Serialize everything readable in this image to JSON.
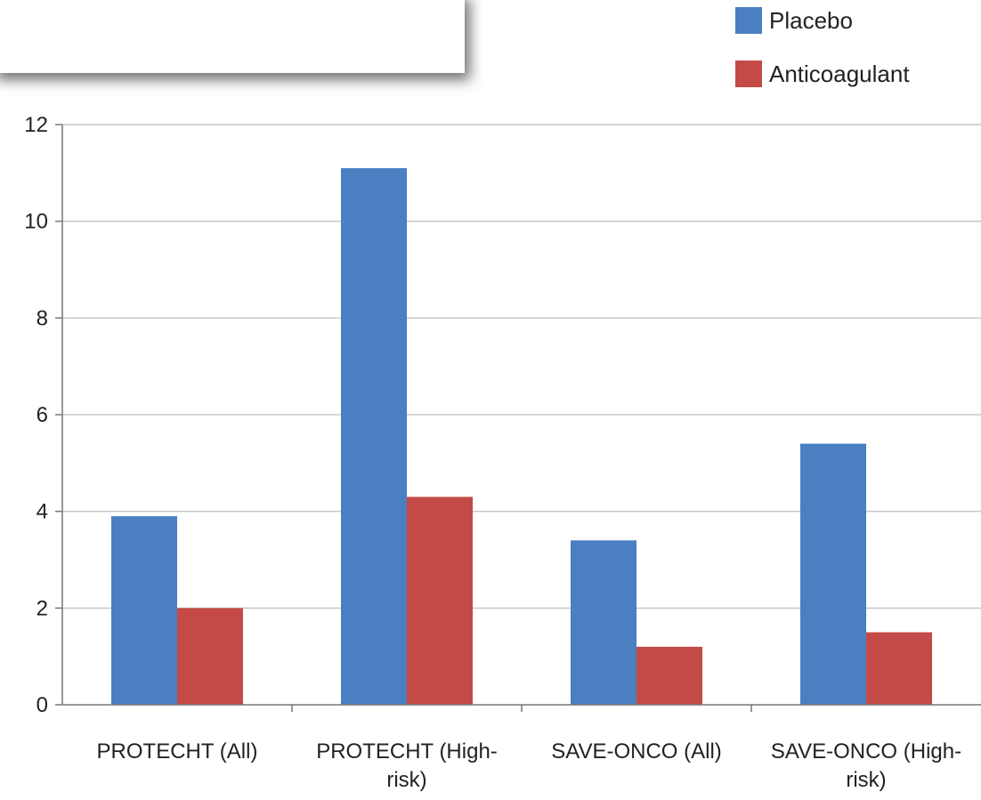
{
  "chart_data": {
    "type": "bar",
    "title": "",
    "xlabel": "",
    "ylabel": "",
    "ylim": [
      0,
      12
    ],
    "yticks": [
      0,
      2,
      4,
      6,
      8,
      10,
      12
    ],
    "grid": true,
    "legend_position": "top-right",
    "categories": [
      [
        "PROTECHT (All)"
      ],
      [
        "PROTECHT (High-",
        "risk)"
      ],
      [
        "SAVE-ONCO (All)"
      ],
      [
        "SAVE-ONCO (High-",
        "risk)"
      ]
    ],
    "series": [
      {
        "name": "Placebo",
        "color": "#4a7fc1",
        "values": [
          3.9,
          11.1,
          3.4,
          5.4
        ]
      },
      {
        "name": "Anticoagulant",
        "color": "#c44a47",
        "values": [
          2.0,
          4.3,
          1.2,
          1.5
        ]
      }
    ]
  }
}
